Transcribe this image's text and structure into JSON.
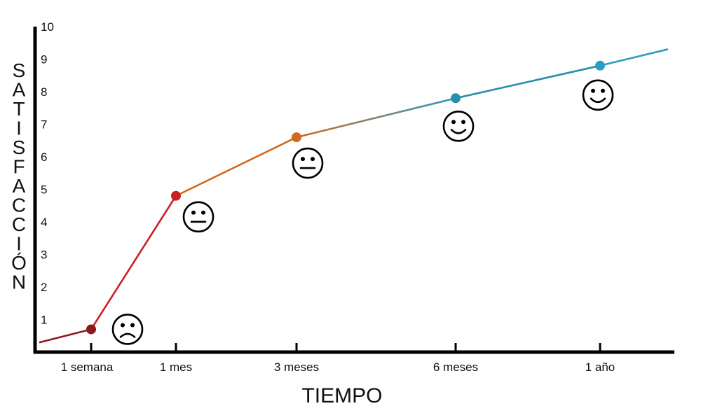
{
  "chart_data": {
    "type": "line",
    "title": "",
    "xlabel": "TIEMPO",
    "ylabel": "SATISFACCIÓN",
    "ylim": [
      0,
      10
    ],
    "y_ticks": [
      "1",
      "2",
      "3",
      "4",
      "5",
      "6",
      "7",
      "8",
      "9",
      "10"
    ],
    "categories": [
      "1 semana",
      "1 mes",
      "3 meses",
      "6 meses",
      "1 año"
    ],
    "points": [
      {
        "label": "1 semana",
        "value": 0.7,
        "color": "#8b1a1a",
        "face": "sad"
      },
      {
        "label": "1 mes",
        "value": 4.8,
        "color": "#cc1f1f",
        "face": "neutral"
      },
      {
        "label": "3 meses",
        "value": 6.6,
        "color": "#d2691e",
        "face": "neutral"
      },
      {
        "label": "6 meses",
        "value": 7.8,
        "color": "#2a8fa8",
        "face": "happy"
      },
      {
        "label": "1 año",
        "value": 8.8,
        "color": "#2a9ec2",
        "face": "happy"
      }
    ],
    "start_value": 0.3,
    "end_value": 9.3,
    "grid": false,
    "legend": "none"
  }
}
